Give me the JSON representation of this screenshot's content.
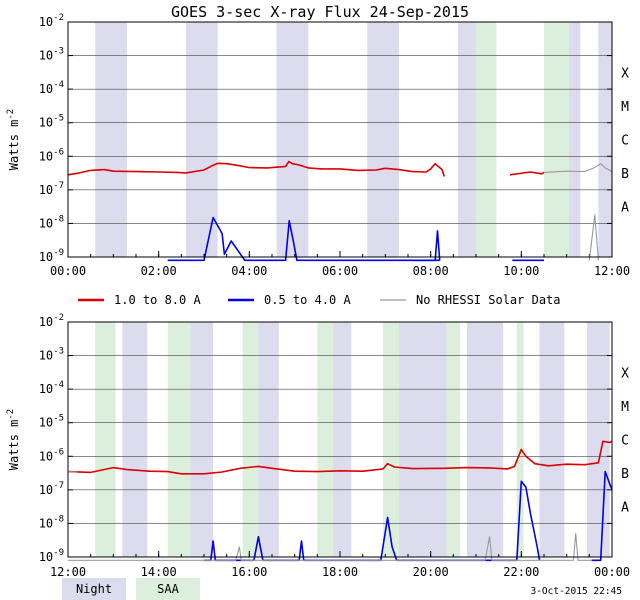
{
  "title": "GOES 3-sec X-ray Flux   24-Sep-2015",
  "timestamp": "3-Oct-2015 22:45",
  "colors": {
    "long_channel": "#dd0000",
    "short_channel": "#0000ee",
    "no_rhessi": "#999999",
    "night_band": "#dcdcee",
    "saa_band": "#dcefdc"
  },
  "legend": {
    "long": "1.0 to 8.0 A",
    "short": "0.5 to 4.0 A",
    "no_rhessi": "No RHESSI Solar Data",
    "night": "Night",
    "saa": "SAA"
  },
  "chart_data": [
    {
      "type": "line",
      "panel": "top",
      "title": "GOES 3-sec X-ray Flux   24-Sep-2015",
      "ylabel": "Watts m^-2",
      "yscale": "log",
      "ylim": [
        1e-09,
        0.01
      ],
      "xlim_hours": [
        0,
        12
      ],
      "x_tick_labels": [
        "00:00",
        "02:00",
        "04:00",
        "06:00",
        "08:00",
        "10:00",
        "12:00"
      ],
      "x_tick_hours": [
        0,
        2,
        4,
        6,
        8,
        10,
        12
      ],
      "y_tick_exponents": [
        -9,
        -8,
        -7,
        -6,
        -5,
        -4,
        -3,
        -2
      ],
      "flare_classes": [
        {
          "label": "A",
          "exp": -8
        },
        {
          "label": "B",
          "exp": -7
        },
        {
          "label": "C",
          "exp": -6
        },
        {
          "label": "M",
          "exp": -5
        },
        {
          "label": "X",
          "exp": -4
        }
      ],
      "night_bands": [
        [
          0.6,
          1.3
        ],
        [
          2.6,
          3.3
        ],
        [
          4.6,
          5.3
        ],
        [
          6.6,
          7.3
        ],
        [
          8.6,
          9.3
        ],
        [
          10.6,
          11.3
        ],
        [
          11.7,
          12.0
        ]
      ],
      "saa_bands": [
        [
          9.0,
          9.45
        ],
        [
          10.5,
          11.05
        ]
      ],
      "series": [
        {
          "name": "1.0 to 8.0 A",
          "color": "#dd0000",
          "segments": [
            [
              [
                0,
                2.8e-07
              ],
              [
                0.25,
                3.2e-07
              ],
              [
                0.5,
                3.8e-07
              ],
              [
                0.8,
                4e-07
              ],
              [
                1.0,
                3.6e-07
              ],
              [
                1.5,
                3.5e-07
              ],
              [
                2.0,
                3.4e-07
              ],
              [
                2.4,
                3.3e-07
              ],
              [
                2.6,
                3.2e-07
              ],
              [
                3.0,
                3.9e-07
              ],
              [
                3.15,
                5e-07
              ],
              [
                3.3,
                6.2e-07
              ],
              [
                3.5,
                6e-07
              ],
              [
                3.8,
                5.2e-07
              ],
              [
                4.0,
                4.6e-07
              ],
              [
                4.4,
                4.5e-07
              ],
              [
                4.8,
                5e-07
              ],
              [
                4.87,
                7e-07
              ],
              [
                4.95,
                6e-07
              ],
              [
                5.1,
                5.5e-07
              ],
              [
                5.3,
                4.5e-07
              ],
              [
                5.6,
                4.2e-07
              ],
              [
                6.0,
                4.2e-07
              ],
              [
                6.4,
                3.8e-07
              ],
              [
                6.8,
                3.9e-07
              ],
              [
                7.0,
                4.4e-07
              ],
              [
                7.3,
                4e-07
              ],
              [
                7.6,
                3.5e-07
              ],
              [
                7.9,
                3.4e-07
              ],
              [
                8.0,
                4.2e-07
              ],
              [
                8.1,
                6e-07
              ],
              [
                8.25,
                4e-07
              ],
              [
                8.3,
                2.5e-07
              ]
            ],
            [
              [
                9.75,
                2.8e-07
              ],
              [
                10.2,
                3.4e-07
              ],
              [
                10.45,
                3e-07
              ],
              [
                10.5,
                3.3e-07
              ]
            ]
          ]
        },
        {
          "name": "0.5 to 4.0 A",
          "color": "#0000ee",
          "segments": [
            [
              [
                2.2,
                8e-10
              ],
              [
                3.0,
                8e-10
              ],
              [
                3.2,
                1.5e-08
              ],
              [
                3.4,
                5e-09
              ],
              [
                3.45,
                1.2e-09
              ],
              [
                3.6,
                3e-09
              ],
              [
                3.9,
                8e-10
              ],
              [
                4.8,
                8e-10
              ],
              [
                4.88,
                1.2e-08
              ],
              [
                4.97,
                3e-09
              ],
              [
                5.05,
                8e-10
              ],
              [
                8.2,
                8e-10
              ]
            ],
            [
              [
                7.6,
                8e-10
              ],
              [
                8.1,
                8e-10
              ],
              [
                8.15,
                6e-09
              ],
              [
                8.2,
                8e-10
              ]
            ],
            [
              [
                9.8,
                8e-10
              ],
              [
                10.5,
                8e-10
              ]
            ]
          ]
        },
        {
          "name": "No RHESSI Solar Data",
          "color": "#999999",
          "segments": [
            [
              [
                10.5,
                3.3e-07
              ],
              [
                11.0,
                3.6e-07
              ],
              [
                11.4,
                3.5e-07
              ],
              [
                11.6,
                4.5e-07
              ],
              [
                11.75,
                6e-07
              ],
              [
                11.85,
                4.5e-07
              ],
              [
                12.0,
                3.5e-07
              ]
            ],
            [
              [
                11.5,
                8e-10
              ],
              [
                11.62,
                1.8e-08
              ],
              [
                11.7,
                8e-10
              ]
            ]
          ]
        }
      ]
    },
    {
      "type": "line",
      "panel": "bottom",
      "ylabel": "Watts m^-2",
      "yscale": "log",
      "ylim": [
        1e-09,
        0.01
      ],
      "xlim_hours": [
        12,
        24
      ],
      "x_tick_labels": [
        "12:00",
        "14:00",
        "16:00",
        "18:00",
        "20:00",
        "22:00",
        "00:00"
      ],
      "x_tick_hours": [
        12,
        14,
        16,
        18,
        20,
        22,
        24
      ],
      "y_tick_exponents": [
        -9,
        -8,
        -7,
        -6,
        -5,
        -4,
        -3,
        -2
      ],
      "flare_classes": [
        {
          "label": "A",
          "exp": -8
        },
        {
          "label": "B",
          "exp": -7
        },
        {
          "label": "C",
          "exp": -6
        },
        {
          "label": "M",
          "exp": -5
        },
        {
          "label": "X",
          "exp": -4
        }
      ],
      "night_bands": [
        [
          13.2,
          13.75
        ],
        [
          14.6,
          15.2
        ],
        [
          16.15,
          16.65
        ],
        [
          17.75,
          18.25
        ],
        [
          19.3,
          20.4
        ],
        [
          20.8,
          21.6
        ],
        [
          22.4,
          22.95
        ],
        [
          23.45,
          23.95
        ]
      ],
      "saa_bands": [
        [
          12.6,
          13.05
        ],
        [
          14.2,
          14.7
        ],
        [
          15.85,
          16.2
        ],
        [
          17.5,
          17.85
        ],
        [
          18.95,
          19.3
        ],
        [
          20.35,
          20.65
        ],
        [
          21.9,
          22.05
        ]
      ],
      "series": [
        {
          "name": "1.0 to 8.0 A",
          "color": "#dd0000",
          "segments": [
            [
              [
                12.0,
                3.5e-07
              ],
              [
                12.5,
                3.3e-07
              ],
              [
                13.0,
                4.6e-07
              ],
              [
                13.3,
                4e-07
              ],
              [
                13.8,
                3.6e-07
              ],
              [
                14.2,
                3.5e-07
              ],
              [
                14.5,
                3e-07
              ],
              [
                15.0,
                3e-07
              ],
              [
                15.4,
                3.4e-07
              ],
              [
                15.8,
                4.4e-07
              ],
              [
                16.2,
                5e-07
              ],
              [
                16.5,
                4.4e-07
              ],
              [
                17.0,
                3.6e-07
              ],
              [
                17.5,
                3.5e-07
              ],
              [
                18.0,
                3.7e-07
              ],
              [
                18.5,
                3.6e-07
              ],
              [
                18.95,
                4.2e-07
              ],
              [
                19.05,
                6e-07
              ],
              [
                19.2,
                4.8e-07
              ],
              [
                19.6,
                4.3e-07
              ],
              [
                20.3,
                4.4e-07
              ],
              [
                20.8,
                4.6e-07
              ],
              [
                21.3,
                4.5e-07
              ],
              [
                21.7,
                4.2e-07
              ],
              [
                21.85,
                5e-07
              ],
              [
                22.0,
                1.6e-06
              ],
              [
                22.1,
                1e-06
              ],
              [
                22.3,
                6e-07
              ],
              [
                22.6,
                5.2e-07
              ],
              [
                23.0,
                5.8e-07
              ],
              [
                23.4,
                5.6e-07
              ],
              [
                23.7,
                6.4e-07
              ],
              [
                23.8,
                2.8e-06
              ],
              [
                23.95,
                2.6e-06
              ],
              [
                24.0,
                2.8e-06
              ]
            ]
          ]
        },
        {
          "name": "0.5 to 4.0 A",
          "color": "#0000ee",
          "segments": [
            [
              [
                15.0,
                8e-10
              ],
              [
                15.15,
                8e-10
              ],
              [
                15.2,
                3e-09
              ],
              [
                15.25,
                8e-10
              ],
              [
                16.1,
                8e-10
              ],
              [
                16.2,
                4e-09
              ],
              [
                16.3,
                8e-10
              ],
              [
                17.1,
                8e-10
              ],
              [
                17.15,
                3e-09
              ],
              [
                17.2,
                8e-10
              ],
              [
                18.9,
                8e-10
              ],
              [
                19.05,
                1.5e-08
              ],
              [
                19.15,
                2e-09
              ],
              [
                19.25,
                8e-10
              ],
              [
                21.9,
                8e-10
              ],
              [
                22.0,
                1.8e-07
              ],
              [
                22.1,
                1.2e-07
              ],
              [
                22.2,
                2e-08
              ],
              [
                22.35,
                2e-09
              ],
              [
                22.4,
                8e-10
              ]
            ],
            [
              [
                23.55,
                8e-10
              ],
              [
                23.75,
                8e-10
              ],
              [
                23.85,
                3.5e-07
              ],
              [
                23.95,
                1.5e-07
              ],
              [
                24.0,
                1e-07
              ]
            ]
          ]
        },
        {
          "name": "No RHESSI Solar Data",
          "color": "#999999",
          "segments": [
            [
              [
                12.0,
                8e-10
              ],
              [
                15.7,
                8e-10
              ],
              [
                15.78,
                2e-09
              ],
              [
                15.82,
                8e-10
              ],
              [
                21.2,
                8e-10
              ],
              [
                21.3,
                4e-09
              ],
              [
                21.35,
                8e-10
              ],
              [
                23.15,
                8e-10
              ],
              [
                23.2,
                5e-09
              ],
              [
                23.25,
                8e-10
              ],
              [
                23.55,
                8e-10
              ]
            ],
            [
              [
                12.0,
                3.5e-07
              ],
              [
                12.2,
                3.4e-07
              ]
            ]
          ]
        }
      ]
    }
  ]
}
